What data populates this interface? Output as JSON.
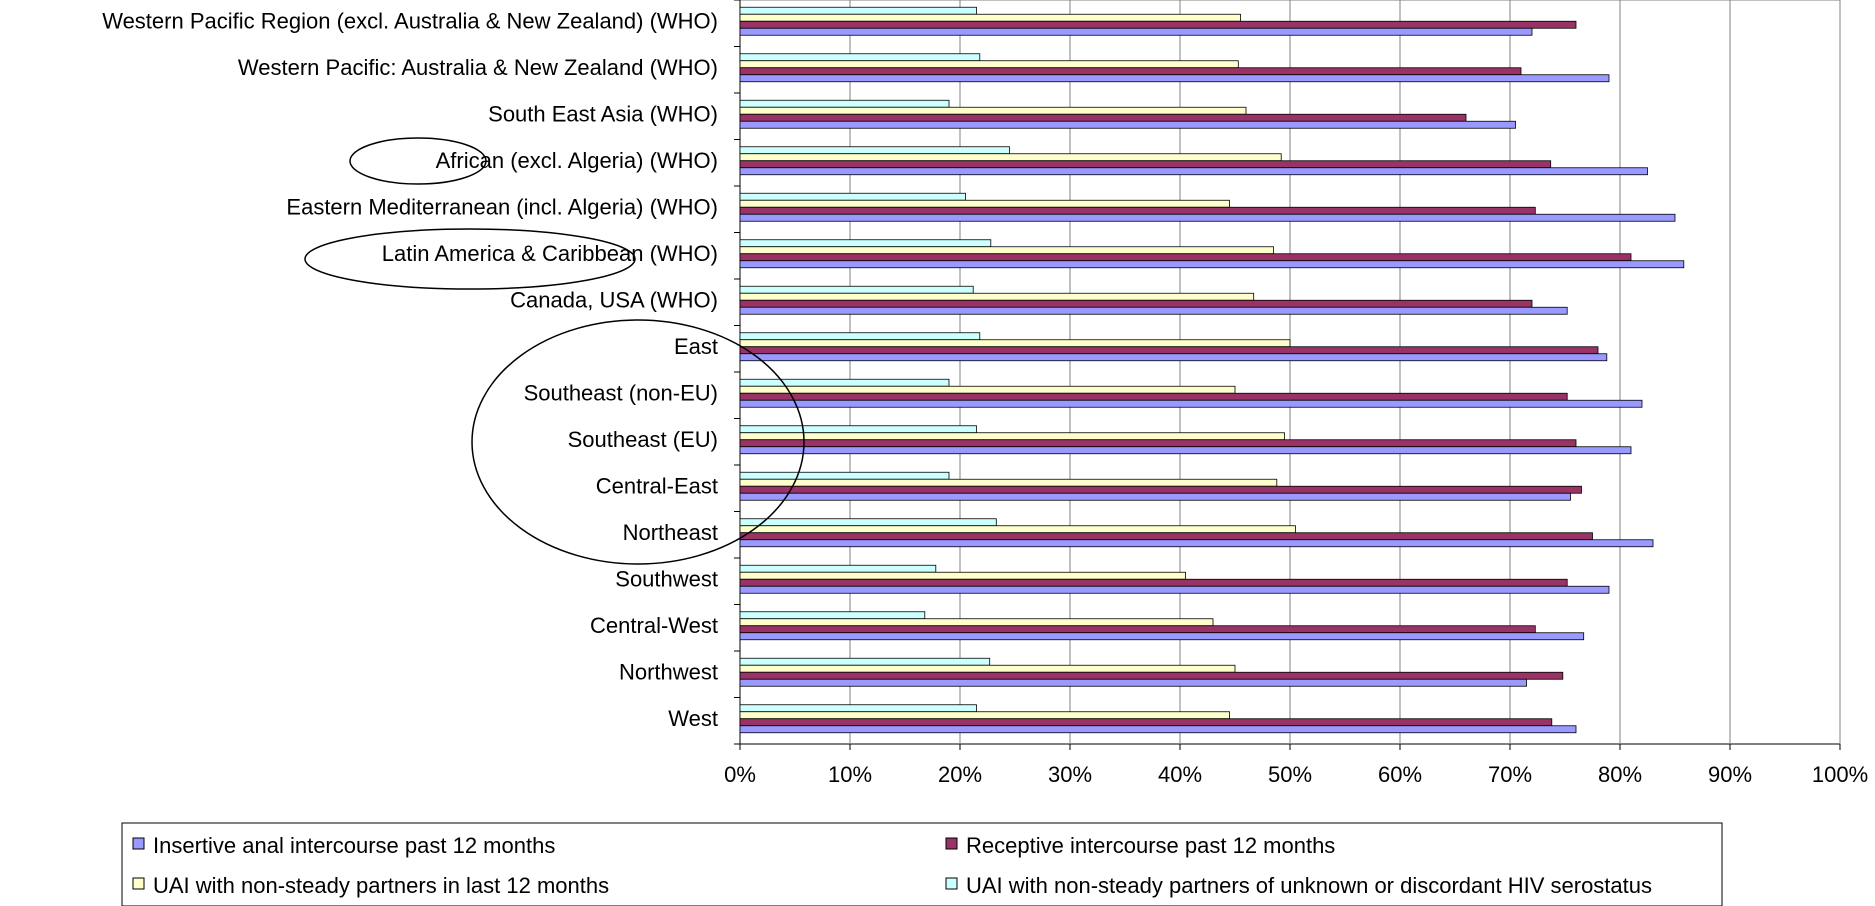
{
  "chart_data": {
    "type": "bar",
    "orientation": "horizontal",
    "categories": [
      "Western Pacific Region (excl. Australia & New Zealand) (WHO)",
      "Western Pacific: Australia & New Zealand (WHO)",
      "South East Asia (WHO)",
      "African (excl. Algeria)  (WHO)",
      "Eastern Mediterranean (incl. Algeria) (WHO)",
      "Latin America & Caribbean (WHO)",
      "Canada, USA (WHO)",
      "East",
      "Southeast (non-EU)",
      "Southeast (EU)",
      "Central-East",
      "Northeast",
      "Southwest",
      "Central-West",
      "Northwest",
      "West"
    ],
    "series": [
      {
        "name": "Insertive anal intercourse past 12 months",
        "color": "#9999ff",
        "values": [
          72,
          79,
          70.5,
          82.5,
          85,
          85.8,
          75.2,
          78.8,
          82,
          81,
          75.5,
          83,
          79,
          76.7,
          71.5,
          76
        ]
      },
      {
        "name": "Receptive intercourse past 12 months",
        "color": "#993366",
        "values": [
          76,
          71,
          66,
          73.7,
          72.3,
          81,
          72,
          78,
          75.2,
          76,
          76.5,
          77.5,
          75.2,
          72.3,
          74.8,
          73.8
        ]
      },
      {
        "name": "UAI with non-steady partners in last 12 months",
        "color": "#ffffcc",
        "values": [
          45.5,
          45.3,
          46,
          49.2,
          44.5,
          48.5,
          46.7,
          50,
          45,
          49.5,
          48.8,
          50.5,
          40.5,
          43,
          45,
          44.5
        ]
      },
      {
        "name": "UAI with non-steady partners of unknown or discordant HIV serostatus",
        "color": "#ccffff",
        "values": [
          21.5,
          21.8,
          19,
          24.5,
          20.5,
          22.8,
          21.2,
          21.8,
          19,
          21.5,
          19,
          23.3,
          17.8,
          16.8,
          22.7,
          21.5
        ]
      }
    ],
    "xlim": [
      0,
      100
    ],
    "x_ticks": [
      "0%",
      "10%",
      "20%",
      "30%",
      "40%",
      "50%",
      "60%",
      "70%",
      "80%",
      "90%",
      "100%"
    ],
    "grid": "vertical major gridlines",
    "legend_position": "bottom",
    "annotations": [
      "ellipse around African",
      "ellipse around Latin America & Caribbean",
      "ellipse around East to Northeast"
    ]
  }
}
